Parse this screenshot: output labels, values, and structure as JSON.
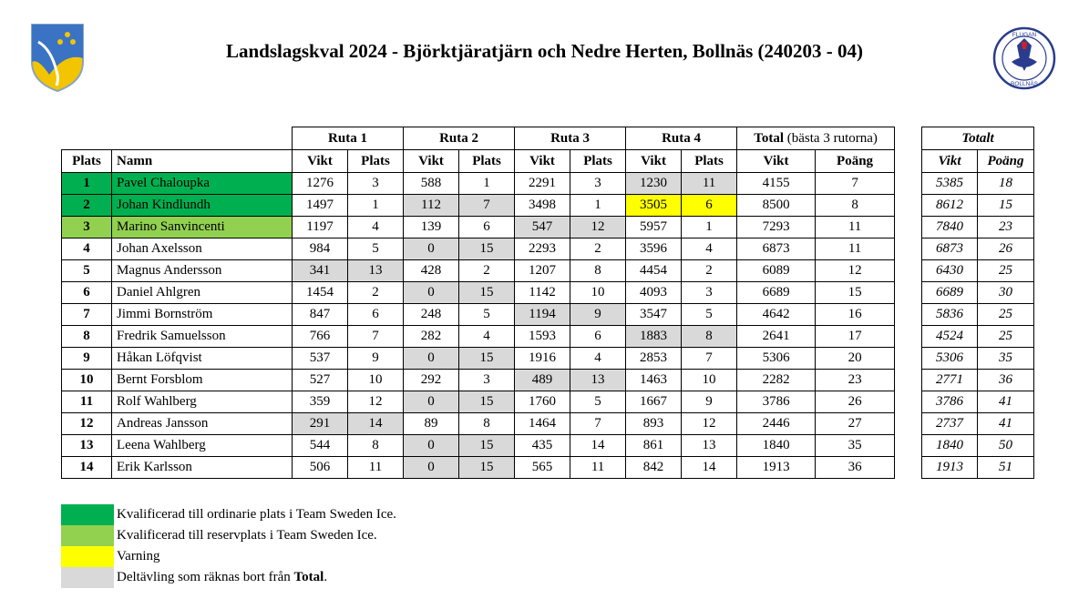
{
  "title": "Landslagskval 2024 - Björktjäratjärn och Nedre Herten, Bollnäs (240203 - 04)",
  "logos": {
    "left": "county-crest-icon",
    "right_text_top": "FLUGAN",
    "right_text_bottom": "BOLLNÄS"
  },
  "colors": {
    "qualified": "#00b050",
    "reserve": "#92d050",
    "warning": "#ffff00",
    "dropped": "#d9d9d9"
  },
  "header": {
    "ruta1": "Ruta 1",
    "ruta2": "Ruta 2",
    "ruta3": "Ruta 3",
    "ruta4": "Ruta 4",
    "total_bold": "Total",
    "total_rest": " (bästa 3 rutorna)",
    "plats": "Plats",
    "namn": "Namn",
    "vikt": "Vikt",
    "plats_col": "Plats",
    "poang": "Poäng",
    "totalt": "Totalt",
    "totalt_vikt": "Vikt",
    "totalt_poang": "Poäng"
  },
  "rows": [
    {
      "plats": "1",
      "name": "Pavel Chaloupka",
      "r1v": "1276",
      "r1p": "3",
      "r2v": "588",
      "r2p": "1",
      "r3v": "2291",
      "r3p": "3",
      "r4v": "1230",
      "r4p": "11",
      "tv": "4155",
      "tp": "7",
      "av": "5385",
      "ap": "18",
      "status": "green",
      "drop": [
        4
      ]
    },
    {
      "plats": "2",
      "name": "Johan Kindlundh",
      "r1v": "1497",
      "r1p": "1",
      "r2v": "112",
      "r2p": "7",
      "r3v": "3498",
      "r3p": "1",
      "r4v": "3505",
      "r4p": "6",
      "tv": "8500",
      "tp": "8",
      "av": "8612",
      "ap": "15",
      "status": "green",
      "drop": [
        2
      ],
      "warn": [
        4
      ]
    },
    {
      "plats": "3",
      "name": "Marino Sanvincenti",
      "r1v": "1197",
      "r1p": "4",
      "r2v": "139",
      "r2p": "6",
      "r3v": "547",
      "r3p": "12",
      "r4v": "5957",
      "r4p": "1",
      "tv": "7293",
      "tp": "11",
      "av": "7840",
      "ap": "23",
      "status": "lgreen",
      "drop": [
        3
      ]
    },
    {
      "plats": "4",
      "name": "Johan Axelsson",
      "r1v": "984",
      "r1p": "5",
      "r2v": "0",
      "r2p": "15",
      "r3v": "2293",
      "r3p": "2",
      "r4v": "3596",
      "r4p": "4",
      "tv": "6873",
      "tp": "11",
      "av": "6873",
      "ap": "26",
      "status": "",
      "drop": [
        2
      ]
    },
    {
      "plats": "5",
      "name": "Magnus Andersson",
      "r1v": "341",
      "r1p": "13",
      "r2v": "428",
      "r2p": "2",
      "r3v": "1207",
      "r3p": "8",
      "r4v": "4454",
      "r4p": "2",
      "tv": "6089",
      "tp": "12",
      "av": "6430",
      "ap": "25",
      "status": "",
      "drop": [
        1
      ]
    },
    {
      "plats": "6",
      "name": "Daniel Ahlgren",
      "r1v": "1454",
      "r1p": "2",
      "r2v": "0",
      "r2p": "15",
      "r3v": "1142",
      "r3p": "10",
      "r4v": "4093",
      "r4p": "3",
      "tv": "6689",
      "tp": "15",
      "av": "6689",
      "ap": "30",
      "status": "",
      "drop": [
        2
      ]
    },
    {
      "plats": "7",
      "name": "Jimmi Bornström",
      "r1v": "847",
      "r1p": "6",
      "r2v": "248",
      "r2p": "5",
      "r3v": "1194",
      "r3p": "9",
      "r4v": "3547",
      "r4p": "5",
      "tv": "4642",
      "tp": "16",
      "av": "5836",
      "ap": "25",
      "status": "",
      "drop": [
        3
      ]
    },
    {
      "plats": "8",
      "name": "Fredrik Samuelsson",
      "r1v": "766",
      "r1p": "7",
      "r2v": "282",
      "r2p": "4",
      "r3v": "1593",
      "r3p": "6",
      "r4v": "1883",
      "r4p": "8",
      "tv": "2641",
      "tp": "17",
      "av": "4524",
      "ap": "25",
      "status": "",
      "drop": [
        4
      ]
    },
    {
      "plats": "9",
      "name": "Håkan Löfqvist",
      "r1v": "537",
      "r1p": "9",
      "r2v": "0",
      "r2p": "15",
      "r3v": "1916",
      "r3p": "4",
      "r4v": "2853",
      "r4p": "7",
      "tv": "5306",
      "tp": "20",
      "av": "5306",
      "ap": "35",
      "status": "",
      "drop": [
        2
      ]
    },
    {
      "plats": "10",
      "name": "Bernt Forsblom",
      "r1v": "527",
      "r1p": "10",
      "r2v": "292",
      "r2p": "3",
      "r3v": "489",
      "r3p": "13",
      "r4v": "1463",
      "r4p": "10",
      "tv": "2282",
      "tp": "23",
      "av": "2771",
      "ap": "36",
      "status": "",
      "drop": [
        3
      ]
    },
    {
      "plats": "11",
      "name": "Rolf Wahlberg",
      "r1v": "359",
      "r1p": "12",
      "r2v": "0",
      "r2p": "15",
      "r3v": "1760",
      "r3p": "5",
      "r4v": "1667",
      "r4p": "9",
      "tv": "3786",
      "tp": "26",
      "av": "3786",
      "ap": "41",
      "status": "",
      "drop": [
        2
      ]
    },
    {
      "plats": "12",
      "name": "Andreas Jansson",
      "r1v": "291",
      "r1p": "14",
      "r2v": "89",
      "r2p": "8",
      "r3v": "1464",
      "r3p": "7",
      "r4v": "893",
      "r4p": "12",
      "tv": "2446",
      "tp": "27",
      "av": "2737",
      "ap": "41",
      "status": "",
      "drop": [
        1
      ]
    },
    {
      "plats": "13",
      "name": "Leena Wahlberg",
      "r1v": "544",
      "r1p": "8",
      "r2v": "0",
      "r2p": "15",
      "r3v": "435",
      "r3p": "14",
      "r4v": "861",
      "r4p": "13",
      "tv": "1840",
      "tp": "35",
      "av": "1840",
      "ap": "50",
      "status": "",
      "drop": [
        2
      ]
    },
    {
      "plats": "14",
      "name": "Erik Karlsson",
      "r1v": "506",
      "r1p": "11",
      "r2v": "0",
      "r2p": "15",
      "r3v": "565",
      "r3p": "11",
      "r4v": "842",
      "r4p": "14",
      "tv": "1913",
      "tp": "36",
      "av": "1913",
      "ap": "51",
      "status": "",
      "drop": [
        2
      ]
    }
  ],
  "legend": [
    {
      "color": "green",
      "text": "Kvalificerad till ordinarie plats i Team Sweden Ice.",
      "bold": ""
    },
    {
      "color": "lgreen",
      "text": "Kvalificerad till reservplats i Team Sweden Ice.",
      "bold": ""
    },
    {
      "color": "yellow",
      "text": "Varning",
      "bold": ""
    },
    {
      "color": "grey",
      "text": "Deltävling som räknas bort från ",
      "bold": "Total",
      "after": "."
    }
  ]
}
